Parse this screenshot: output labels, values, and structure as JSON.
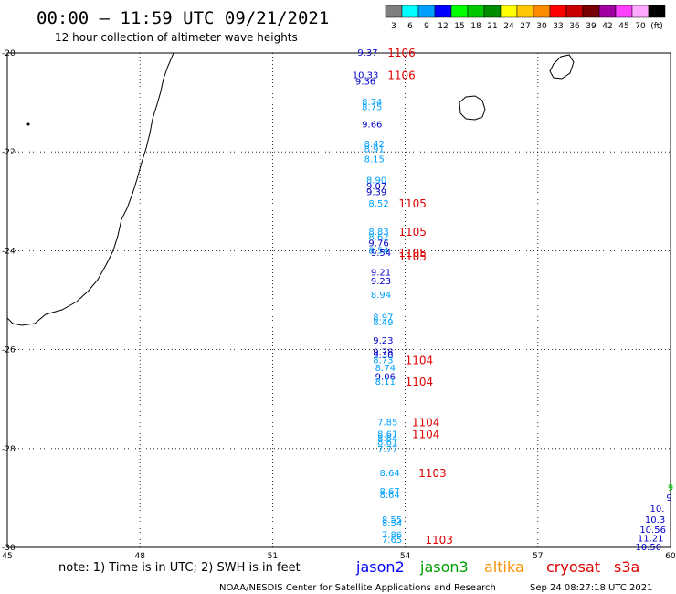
{
  "header": {
    "title": "00:00 – 11:59 UTC 09/21/2021",
    "subtitle": "12 hour collection of altimeter wave heights"
  },
  "colorbar": {
    "labels": [
      "3",
      "6",
      "9",
      "12",
      "15",
      "18",
      "21",
      "24",
      "27",
      "30",
      "33",
      "36",
      "39",
      "42",
      "45",
      "70",
      "(ft)"
    ],
    "colors": [
      "#7f7f7f",
      "#00ffff",
      "#00a0ff",
      "#0000ff",
      "#00ff00",
      "#00c800",
      "#008c00",
      "#ffff00",
      "#ffc800",
      "#ff8c00",
      "#ff0000",
      "#c80000",
      "#780000",
      "#a000a0",
      "#ff40ff",
      "#ffa8ff",
      "#000000"
    ]
  },
  "map": {
    "lon_range": [
      45,
      60
    ],
    "lat_range": [
      -30,
      -20
    ],
    "x_ticks": [
      "45",
      "48",
      "51",
      "54",
      "57",
      "60"
    ],
    "y_ticks": [
      "-20",
      "-22",
      "-24",
      "-26",
      "-28",
      "-30"
    ],
    "grid": true
  },
  "observations": [
    {
      "text": "9.37",
      "lon": 53.15,
      "lat": -20.0,
      "color": "#0000cc"
    },
    {
      "text": "10.33",
      "lon": 53.1,
      "lat": -20.45,
      "color": "#0000cc"
    },
    {
      "text": "9.36",
      "lon": 53.1,
      "lat": -20.58,
      "color": "#0000cc"
    },
    {
      "text": "8.74",
      "lon": 53.25,
      "lat": -21.0,
      "color": "#00a0ff"
    },
    {
      "text": "8.75",
      "lon": 53.25,
      "lat": -21.1,
      "color": "#00a0ff"
    },
    {
      "text": "9.66",
      "lon": 53.25,
      "lat": -21.45,
      "color": "#0000cc"
    },
    {
      "text": "8.42",
      "lon": 53.3,
      "lat": -21.85,
      "color": "#00a0ff"
    },
    {
      "text": "8.91",
      "lon": 53.3,
      "lat": -21.95,
      "color": "#00a0ff"
    },
    {
      "text": "8.15",
      "lon": 53.3,
      "lat": -22.15,
      "color": "#00a0ff"
    },
    {
      "text": "8.90",
      "lon": 53.35,
      "lat": -22.58,
      "color": "#00a0ff"
    },
    {
      "text": "9.07",
      "lon": 53.35,
      "lat": -22.7,
      "color": "#0000cc"
    },
    {
      "text": "9.39",
      "lon": 53.35,
      "lat": -22.82,
      "color": "#0000cc"
    },
    {
      "text": "8.52",
      "lon": 53.4,
      "lat": -23.05,
      "color": "#00a0ff"
    },
    {
      "text": "8.83",
      "lon": 53.4,
      "lat": -23.62,
      "color": "#00a0ff"
    },
    {
      "text": "8.62",
      "lon": 53.4,
      "lat": -23.72,
      "color": "#00a0ff"
    },
    {
      "text": "9.76",
      "lon": 53.4,
      "lat": -23.85,
      "color": "#0000cc"
    },
    {
      "text": "8.54",
      "lon": 53.4,
      "lat": -24.0,
      "color": "#00a0ff"
    },
    {
      "text": "9.54",
      "lon": 53.45,
      "lat": -24.05,
      "color": "#0000cc"
    },
    {
      "text": "9.21",
      "lon": 53.45,
      "lat": -24.45,
      "color": "#0000cc"
    },
    {
      "text": "9.23",
      "lon": 53.45,
      "lat": -24.62,
      "color": "#0000cc"
    },
    {
      "text": "8.94",
      "lon": 53.45,
      "lat": -24.9,
      "color": "#00a0ff"
    },
    {
      "text": "8.97",
      "lon": 53.5,
      "lat": -25.35,
      "color": "#00a0ff"
    },
    {
      "text": "8.49",
      "lon": 53.5,
      "lat": -25.45,
      "color": "#00a0ff"
    },
    {
      "text": "9.23",
      "lon": 53.5,
      "lat": -25.82,
      "color": "#0000cc"
    },
    {
      "text": "9.78",
      "lon": 53.5,
      "lat": -26.05,
      "color": "#0000cc"
    },
    {
      "text": "9.38",
      "lon": 53.5,
      "lat": -26.12,
      "color": "#0000cc"
    },
    {
      "text": "8.73",
      "lon": 53.5,
      "lat": -26.22,
      "color": "#00a0ff"
    },
    {
      "text": "8.74",
      "lon": 53.55,
      "lat": -26.38,
      "color": "#00a0ff"
    },
    {
      "text": "9.06",
      "lon": 53.55,
      "lat": -26.55,
      "color": "#0000cc"
    },
    {
      "text": "8.11",
      "lon": 53.55,
      "lat": -26.65,
      "color": "#00a0ff"
    },
    {
      "text": "7.85",
      "lon": 53.6,
      "lat": -27.48,
      "color": "#00a0ff"
    },
    {
      "text": "8.61",
      "lon": 53.6,
      "lat": -27.72,
      "color": "#00a0ff"
    },
    {
      "text": "8.64",
      "lon": 53.6,
      "lat": -27.8,
      "color": "#00a0ff"
    },
    {
      "text": "8.61",
      "lon": 53.6,
      "lat": -27.88,
      "color": "#00a0ff"
    },
    {
      "text": "7.77",
      "lon": 53.6,
      "lat": -28.02,
      "color": "#00a0ff"
    },
    {
      "text": "8.64",
      "lon": 53.65,
      "lat": -28.5,
      "color": "#00a0ff"
    },
    {
      "text": "8.67",
      "lon": 53.65,
      "lat": -28.87,
      "color": "#00a0ff"
    },
    {
      "text": "8.64",
      "lon": 53.65,
      "lat": -28.95,
      "color": "#00a0ff"
    },
    {
      "text": "8.55",
      "lon": 53.7,
      "lat": -29.45,
      "color": "#00a0ff"
    },
    {
      "text": "8.54",
      "lon": 53.7,
      "lat": -29.52,
      "color": "#00a0ff"
    },
    {
      "text": "7.86",
      "lon": 53.7,
      "lat": -29.75,
      "color": "#00a0ff"
    },
    {
      "text": "7.65",
      "lon": 53.7,
      "lat": -29.85,
      "color": "#00a0ff"
    },
    {
      "text": "9",
      "lon": 60.0,
      "lat": -28.8,
      "color": "#00c800"
    },
    {
      "text": "9",
      "lon": 59.97,
      "lat": -29.0,
      "color": "#0000cc"
    },
    {
      "text": "10.",
      "lon": 59.7,
      "lat": -29.22,
      "color": "#0000cc"
    },
    {
      "text": "10.3",
      "lon": 59.65,
      "lat": -29.45,
      "color": "#0000cc"
    },
    {
      "text": "10.56",
      "lon": 59.6,
      "lat": -29.65,
      "color": "#0000cc"
    },
    {
      "text": "11.21",
      "lon": 59.55,
      "lat": -29.82,
      "color": "#0000cc"
    },
    {
      "text": "10.50",
      "lon": 59.5,
      "lat": -30.0,
      "color": "#0000cc"
    }
  ],
  "passes": [
    {
      "text": "1106",
      "lon": 53.6,
      "lat": -20.0
    },
    {
      "text": "1106",
      "lon": 53.6,
      "lat": -20.45
    },
    {
      "text": "1105",
      "lon": 53.85,
      "lat": -23.05
    },
    {
      "text": "1105",
      "lon": 53.85,
      "lat": -23.62
    },
    {
      "text": "1105",
      "lon": 53.85,
      "lat": -24.05
    },
    {
      "text": "1105",
      "lon": 53.85,
      "lat": -24.12
    },
    {
      "text": "1104",
      "lon": 54.0,
      "lat": -26.22
    },
    {
      "text": "1104",
      "lon": 54.0,
      "lat": -26.65
    },
    {
      "text": "1104",
      "lon": 54.15,
      "lat": -27.48
    },
    {
      "text": "1104",
      "lon": 54.15,
      "lat": -27.72
    },
    {
      "text": "1103",
      "lon": 54.3,
      "lat": -28.5
    },
    {
      "text": "1103",
      "lon": 54.45,
      "lat": -29.85
    }
  ],
  "footer": {
    "note": "note: 1) Time is in UTC; 2) SWH is in feet",
    "legend": [
      {
        "label": "jason2",
        "color": "#0000ff"
      },
      {
        "label": "jason3",
        "color": "#00a000"
      },
      {
        "label": "altika",
        "color": "#ff9000"
      },
      {
        "label": "cryosat",
        "color": "#e00000"
      },
      {
        "label": "s3a",
        "color": "#e00000"
      }
    ],
    "credit": "NOAA/NESDIS Center for Satellite Applications and Research",
    "timestamp": "Sep 24 08:27:18 UTC 2021"
  }
}
